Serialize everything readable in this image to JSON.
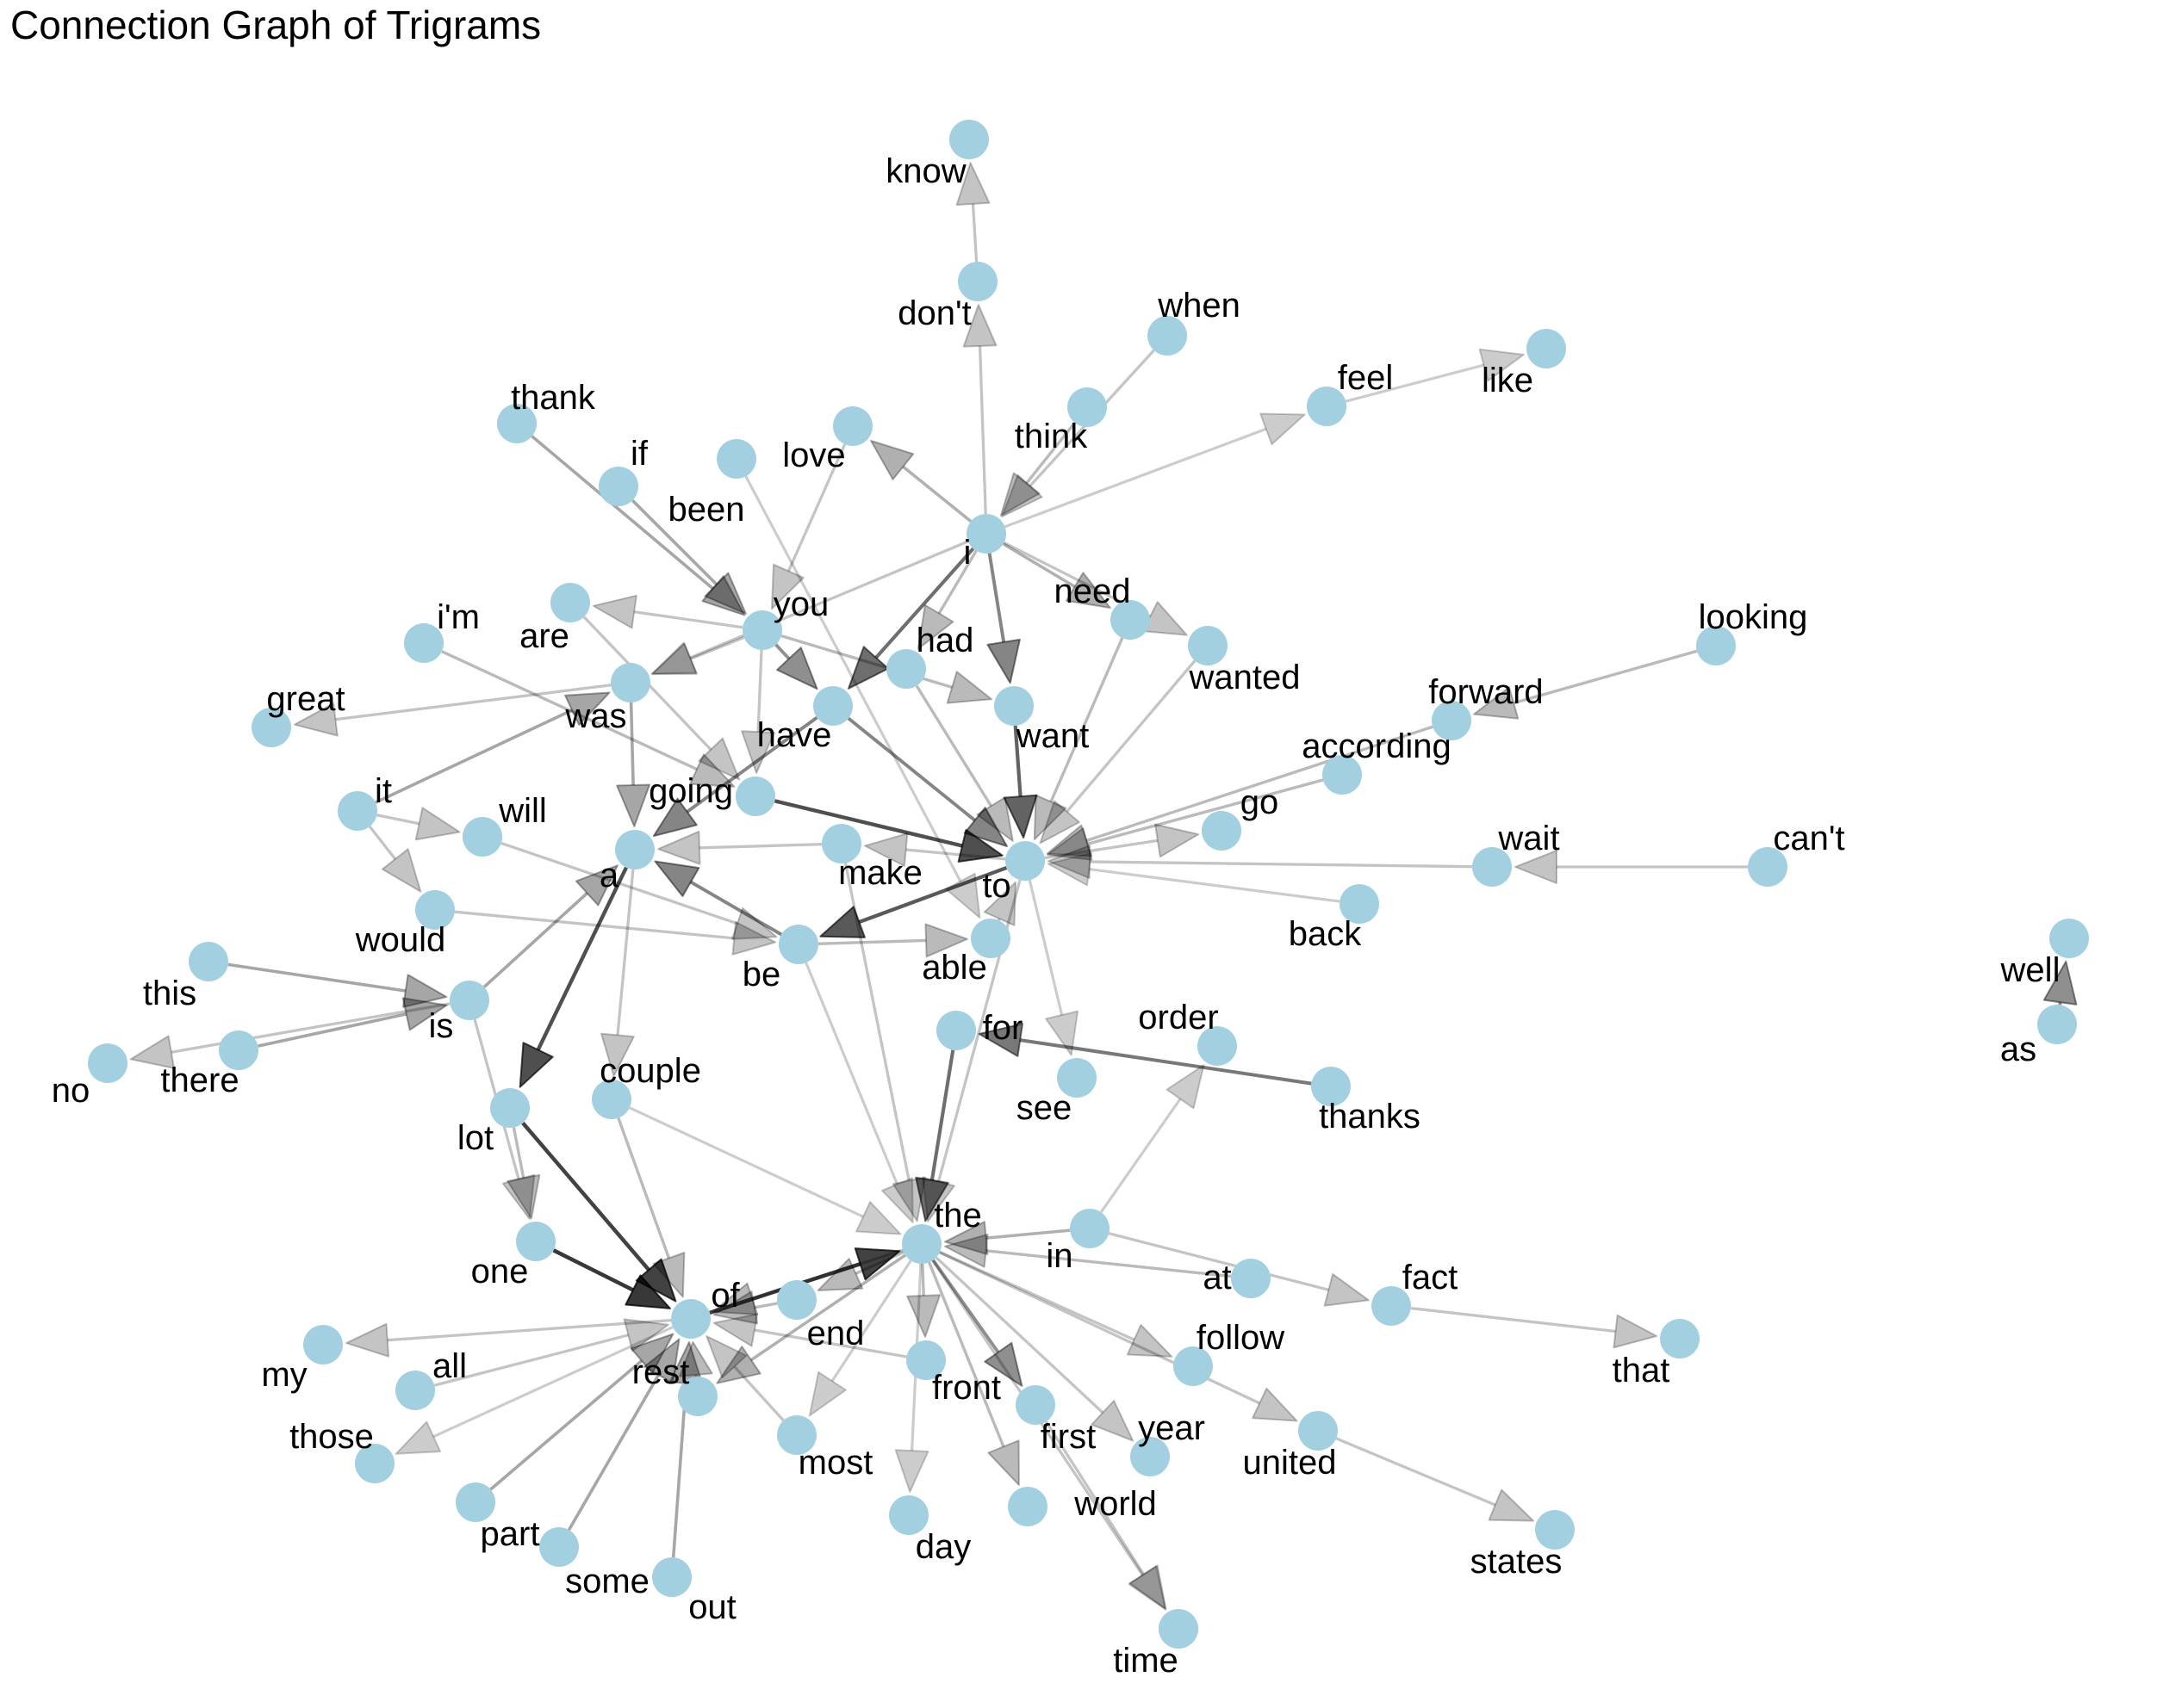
{
  "title": "Connection Graph of Trigrams",
  "colors": {
    "node": "#a2d0e0",
    "edge": "#000000",
    "label": "#000000",
    "background": "#ffffff"
  },
  "nodes": [
    {
      "id": "know",
      "label": "know"
    },
    {
      "id": "don't",
      "label": "don't"
    },
    {
      "id": "when",
      "label": "when"
    },
    {
      "id": "like",
      "label": "like"
    },
    {
      "id": "feel",
      "label": "feel"
    },
    {
      "id": "think",
      "label": "think"
    },
    {
      "id": "thank",
      "label": "thank"
    },
    {
      "id": "if",
      "label": "if"
    },
    {
      "id": "been",
      "label": "been"
    },
    {
      "id": "love",
      "label": "love"
    },
    {
      "id": "i",
      "label": "i"
    },
    {
      "id": "need",
      "label": "need"
    },
    {
      "id": "wanted",
      "label": "wanted"
    },
    {
      "id": "i'm",
      "label": "i'm"
    },
    {
      "id": "are",
      "label": "are"
    },
    {
      "id": "you",
      "label": "you"
    },
    {
      "id": "had",
      "label": "had"
    },
    {
      "id": "looking",
      "label": "looking"
    },
    {
      "id": "forward",
      "label": "forward"
    },
    {
      "id": "great",
      "label": "great"
    },
    {
      "id": "was",
      "label": "was"
    },
    {
      "id": "have",
      "label": "have"
    },
    {
      "id": "want",
      "label": "want"
    },
    {
      "id": "according",
      "label": "according"
    },
    {
      "id": "it",
      "label": "it"
    },
    {
      "id": "will",
      "label": "will"
    },
    {
      "id": "going",
      "label": "going"
    },
    {
      "id": "go",
      "label": "go"
    },
    {
      "id": "wait",
      "label": "wait"
    },
    {
      "id": "can't",
      "label": "can't"
    },
    {
      "id": "a",
      "label": "a"
    },
    {
      "id": "make",
      "label": "make"
    },
    {
      "id": "to",
      "label": "to"
    },
    {
      "id": "would",
      "label": "would"
    },
    {
      "id": "back",
      "label": "back"
    },
    {
      "id": "well",
      "label": "well"
    },
    {
      "id": "be",
      "label": "be"
    },
    {
      "id": "able",
      "label": "able"
    },
    {
      "id": "this",
      "label": "this"
    },
    {
      "id": "is",
      "label": "is"
    },
    {
      "id": "as",
      "label": "as"
    },
    {
      "id": "no",
      "label": "no"
    },
    {
      "id": "there",
      "label": "there"
    },
    {
      "id": "order",
      "label": "order"
    },
    {
      "id": "for",
      "label": "for"
    },
    {
      "id": "couple",
      "label": "couple"
    },
    {
      "id": "see",
      "label": "see"
    },
    {
      "id": "thanks",
      "label": "thanks"
    },
    {
      "id": "lot",
      "label": "lot"
    },
    {
      "id": "the",
      "label": "the"
    },
    {
      "id": "in",
      "label": "in"
    },
    {
      "id": "one",
      "label": "one"
    },
    {
      "id": "at",
      "label": "at"
    },
    {
      "id": "fact",
      "label": "fact"
    },
    {
      "id": "of",
      "label": "of"
    },
    {
      "id": "end",
      "label": "end"
    },
    {
      "id": "that",
      "label": "that"
    },
    {
      "id": "my",
      "label": "my"
    },
    {
      "id": "follow",
      "label": "follow"
    },
    {
      "id": "all",
      "label": "all"
    },
    {
      "id": "rest",
      "label": "rest"
    },
    {
      "id": "front",
      "label": "front"
    },
    {
      "id": "year",
      "label": "year"
    },
    {
      "id": "first",
      "label": "first"
    },
    {
      "id": "those",
      "label": "those"
    },
    {
      "id": "united",
      "label": "united"
    },
    {
      "id": "most",
      "label": "most"
    },
    {
      "id": "part",
      "label": "part"
    },
    {
      "id": "world",
      "label": "world"
    },
    {
      "id": "day",
      "label": "day"
    },
    {
      "id": "states",
      "label": "states"
    },
    {
      "id": "some",
      "label": "some"
    },
    {
      "id": "out",
      "label": "out"
    },
    {
      "id": "time",
      "label": "time"
    }
  ],
  "edges": [
    {
      "from": "don't",
      "to": "know",
      "weight": 0.15
    },
    {
      "from": "i",
      "to": "don't",
      "weight": 0.15
    },
    {
      "from": "think",
      "to": "i",
      "weight": 0.2
    },
    {
      "from": "when",
      "to": "i",
      "weight": 0.15
    },
    {
      "from": "feel",
      "to": "like",
      "weight": 0.12
    },
    {
      "from": "i",
      "to": "feel",
      "weight": 0.12
    },
    {
      "from": "i",
      "to": "love",
      "weight": 0.25
    },
    {
      "from": "i",
      "to": "need",
      "weight": 0.25
    },
    {
      "from": "i",
      "to": "wanted",
      "weight": 0.15
    },
    {
      "from": "i",
      "to": "have",
      "weight": 0.55
    },
    {
      "from": "i",
      "to": "want",
      "weight": 0.45
    },
    {
      "from": "i",
      "to": "had",
      "weight": 0.2
    },
    {
      "from": "i",
      "to": "was",
      "weight": 0.15
    },
    {
      "from": "thank",
      "to": "you",
      "weight": 0.3
    },
    {
      "from": "if",
      "to": "you",
      "weight": 0.3
    },
    {
      "from": "love",
      "to": "you",
      "weight": 0.15
    },
    {
      "from": "i'm",
      "to": "going",
      "weight": 0.2
    },
    {
      "from": "are",
      "to": "going",
      "weight": 0.15
    },
    {
      "from": "you",
      "to": "are",
      "weight": 0.15
    },
    {
      "from": "you",
      "to": "have",
      "weight": 0.4
    },
    {
      "from": "you",
      "to": "want",
      "weight": 0.2
    },
    {
      "from": "you",
      "to": "was",
      "weight": 0.15
    },
    {
      "from": "you",
      "to": "going",
      "weight": 0.15
    },
    {
      "from": "have",
      "to": "to",
      "weight": 0.45
    },
    {
      "from": "have",
      "to": "a",
      "weight": 0.45
    },
    {
      "from": "had",
      "to": "to",
      "weight": 0.2
    },
    {
      "from": "want",
      "to": "to",
      "weight": 0.6
    },
    {
      "from": "need",
      "to": "to",
      "weight": 0.2
    },
    {
      "from": "wanted",
      "to": "to",
      "weight": 0.15
    },
    {
      "from": "looking",
      "to": "forward",
      "weight": 0.2
    },
    {
      "from": "forward",
      "to": "to",
      "weight": 0.2
    },
    {
      "from": "according",
      "to": "to",
      "weight": 0.2
    },
    {
      "from": "to",
      "to": "go",
      "weight": 0.15
    },
    {
      "from": "can't",
      "to": "wait",
      "weight": 0.15
    },
    {
      "from": "wait",
      "to": "to",
      "weight": 0.15
    },
    {
      "from": "back",
      "to": "to",
      "weight": 0.12
    },
    {
      "from": "going",
      "to": "to",
      "weight": 0.7
    },
    {
      "from": "to",
      "to": "be",
      "weight": 0.65
    },
    {
      "from": "to",
      "to": "make",
      "weight": 0.15
    },
    {
      "from": "to",
      "to": "see",
      "weight": 0.12
    },
    {
      "from": "to",
      "to": "the",
      "weight": 0.15
    },
    {
      "from": "able",
      "to": "to",
      "weight": 0.15
    },
    {
      "from": "it",
      "to": "was",
      "weight": 0.3
    },
    {
      "from": "it",
      "to": "will",
      "weight": 0.15
    },
    {
      "from": "it",
      "to": "would",
      "weight": 0.15
    },
    {
      "from": "was",
      "to": "a",
      "weight": 0.3
    },
    {
      "from": "was",
      "to": "great",
      "weight": 0.15
    },
    {
      "from": "will",
      "to": "be",
      "weight": 0.15
    },
    {
      "from": "would",
      "to": "be",
      "weight": 0.15
    },
    {
      "from": "be",
      "to": "a",
      "weight": 0.45
    },
    {
      "from": "be",
      "to": "able",
      "weight": 0.2
    },
    {
      "from": "be",
      "to": "the",
      "weight": 0.12
    },
    {
      "from": "make",
      "to": "a",
      "weight": 0.15
    },
    {
      "from": "make",
      "to": "the",
      "weight": 0.15
    },
    {
      "from": "is",
      "to": "a",
      "weight": 0.3
    },
    {
      "from": "this",
      "to": "is",
      "weight": 0.3
    },
    {
      "from": "there",
      "to": "is",
      "weight": 0.3
    },
    {
      "from": "is",
      "to": "no",
      "weight": 0.15
    },
    {
      "from": "is",
      "to": "one",
      "weight": 0.15
    },
    {
      "from": "as",
      "to": "well",
      "weight": 0.4
    },
    {
      "from": "a",
      "to": "lot",
      "weight": 0.7
    },
    {
      "from": "a",
      "to": "couple",
      "weight": 0.15
    },
    {
      "from": "lot",
      "to": "of",
      "weight": 0.75
    },
    {
      "from": "lot",
      "to": "one",
      "weight": 0.2
    },
    {
      "from": "one",
      "to": "of",
      "weight": 0.8
    },
    {
      "from": "couple",
      "to": "of",
      "weight": 0.2
    },
    {
      "from": "couple",
      "to": "the",
      "weight": 0.12
    },
    {
      "from": "thanks",
      "to": "for",
      "weight": 0.5
    },
    {
      "from": "for",
      "to": "the",
      "weight": 0.55
    },
    {
      "from": "in",
      "to": "order",
      "weight": 0.12
    },
    {
      "from": "in",
      "to": "the",
      "weight": 0.25
    },
    {
      "from": "at",
      "to": "the",
      "weight": 0.2
    },
    {
      "from": "of",
      "to": "the",
      "weight": 0.75
    },
    {
      "from": "the",
      "to": "of",
      "weight": 0.2
    },
    {
      "from": "the",
      "to": "end",
      "weight": 0.2
    },
    {
      "from": "end",
      "to": "of",
      "weight": 0.2
    },
    {
      "from": "the",
      "to": "rest",
      "weight": 0.25
    },
    {
      "from": "rest",
      "to": "of",
      "weight": 0.2
    },
    {
      "from": "the",
      "to": "first",
      "weight": 0.4
    },
    {
      "from": "the",
      "to": "front",
      "weight": 0.2
    },
    {
      "from": "front",
      "to": "of",
      "weight": 0.15
    },
    {
      "from": "the",
      "to": "world",
      "weight": 0.2
    },
    {
      "from": "the",
      "to": "day",
      "weight": 0.12
    },
    {
      "from": "the",
      "to": "year",
      "weight": 0.15
    },
    {
      "from": "the",
      "to": "time",
      "weight": 0.15
    },
    {
      "from": "the",
      "to": "follow",
      "weight": 0.15
    },
    {
      "from": "the",
      "to": "united",
      "weight": 0.15
    },
    {
      "from": "united",
      "to": "states",
      "weight": 0.15
    },
    {
      "from": "the",
      "to": "most",
      "weight": 0.12
    },
    {
      "from": "in",
      "to": "fact",
      "weight": 0.15
    },
    {
      "from": "fact",
      "to": "that",
      "weight": 0.15
    },
    {
      "from": "of",
      "to": "my",
      "weight": 0.15
    },
    {
      "from": "of",
      "to": "those",
      "weight": 0.12
    },
    {
      "from": "all",
      "to": "of",
      "weight": 0.15
    },
    {
      "from": "most",
      "to": "of",
      "weight": 0.15
    },
    {
      "from": "part",
      "to": "of",
      "weight": 0.3
    },
    {
      "from": "some",
      "to": "of",
      "weight": 0.3
    },
    {
      "from": "out",
      "to": "of",
      "weight": 0.3
    },
    {
      "from": "first",
      "to": "time",
      "weight": 0.15
    },
    {
      "from": "been",
      "to": "able",
      "weight": 0.12
    }
  ]
}
